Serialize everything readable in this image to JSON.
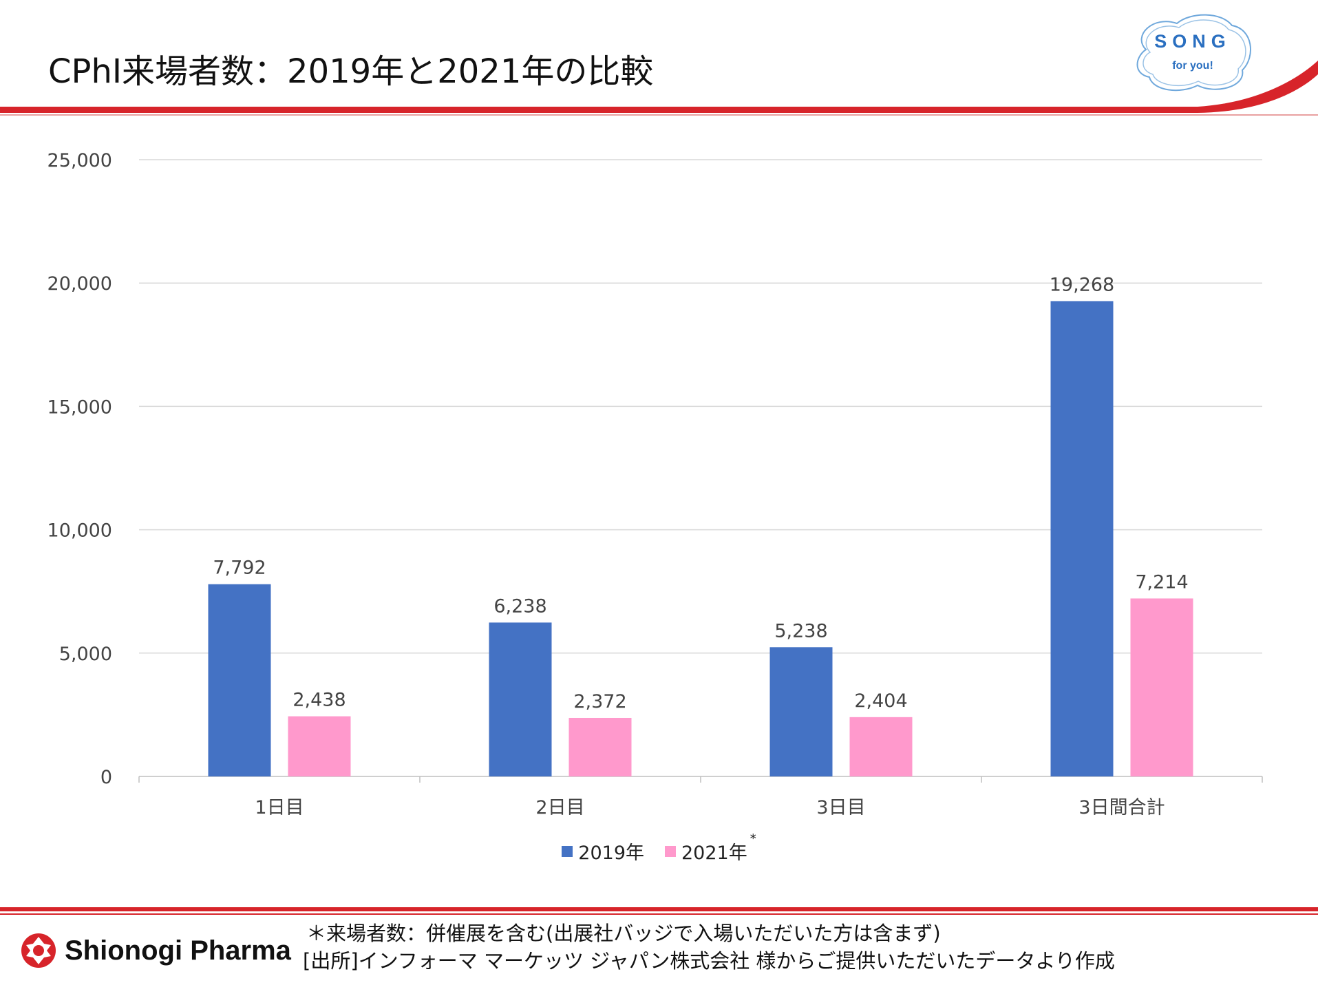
{
  "header": {
    "title": "CPhI来場者数：2019年と2021年の比較",
    "logo": {
      "line1": "SONG",
      "line2": "for you!"
    }
  },
  "colors": {
    "accent_red": "#d7242a",
    "series_2019": "#4472c4",
    "series_2021": "#ff99cc",
    "logo_blue": "#2a6fc0"
  },
  "chart_data": {
    "type": "bar",
    "categories": [
      "1日目",
      "2日目",
      "3日目",
      "3日間合計"
    ],
    "series": [
      {
        "name": "2019年",
        "values": [
          7792,
          6238,
          5238,
          19268
        ],
        "labels": [
          "7,792",
          "6,238",
          "5,238",
          "19,268"
        ]
      },
      {
        "name": "2021年",
        "values": [
          2438,
          2372,
          2404,
          7214
        ],
        "labels": [
          "2,438",
          "2,372",
          "2,404",
          "7,214"
        ]
      }
    ],
    "ylim": [
      0,
      25000
    ],
    "yticks": [
      0,
      5000,
      10000,
      15000,
      20000,
      25000
    ],
    "ytick_labels": [
      "0",
      "5,000",
      "10,000",
      "15,000",
      "20,000",
      "25,000"
    ],
    "grid": true,
    "legend_position": "bottom",
    "legend_note": "*"
  },
  "footer": {
    "brand": "Shionogi Pharma",
    "note1": "＊来場者数：併催展を含む(出展社バッジで入場いただいた方は含まず)",
    "note2": "[出所]インフォーマ マーケッツ ジャパン株式会社 様からご提供いただいたデータより作成"
  }
}
